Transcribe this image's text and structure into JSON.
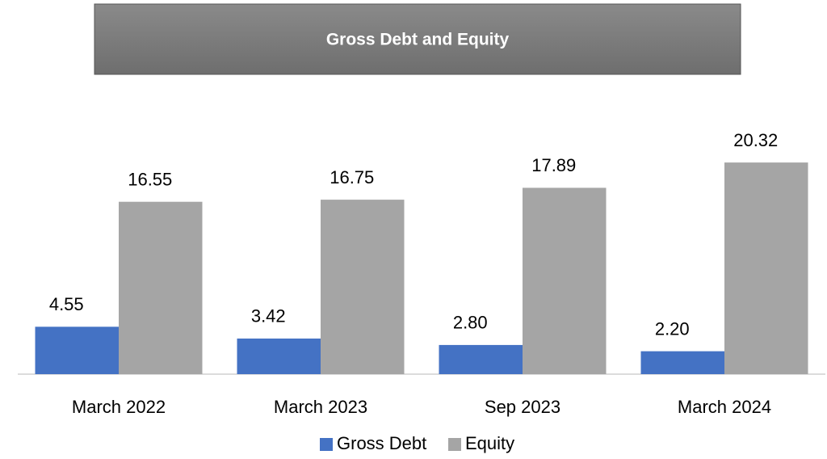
{
  "chart_data": {
    "type": "bar",
    "title": "Gross Debt and Equity",
    "categories": [
      "March 2022",
      "March 2023",
      "Sep 2023",
      "March 2024"
    ],
    "series": [
      {
        "name": "Gross Debt",
        "color": "#4472c4",
        "values": [
          4.55,
          3.42,
          2.8,
          2.2
        ],
        "value_labels": [
          "4.55",
          "3.42",
          "2.80",
          "2.20"
        ]
      },
      {
        "name": "Equity",
        "color": "#a5a5a5",
        "values": [
          16.55,
          16.75,
          17.89,
          20.32
        ],
        "value_labels": [
          "16.55",
          "16.75",
          "17.89",
          "20.32"
        ]
      }
    ],
    "ylim": [
      0,
      22.5
    ],
    "legend": "bottom"
  }
}
